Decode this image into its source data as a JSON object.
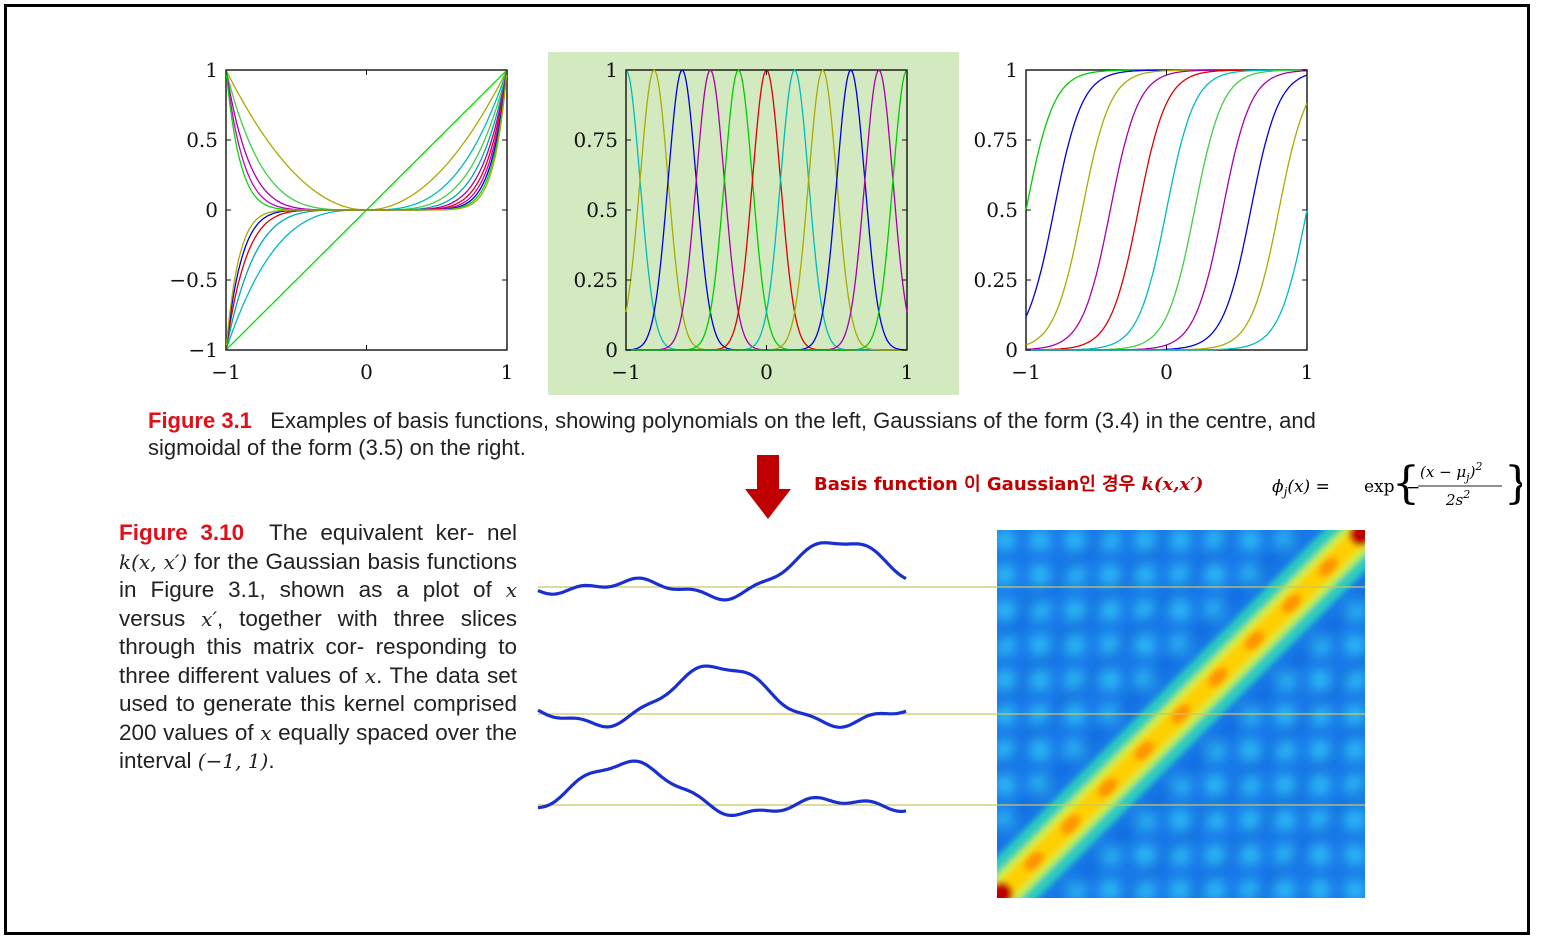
{
  "top_figures": {
    "polynomial": {
      "y_ticks": [
        "1",
        "0.5",
        "0",
        "−0.5",
        "−1"
      ],
      "x_ticks": [
        "−1",
        "0",
        "1"
      ],
      "colors": [
        "#00dd00",
        "#aaaa00",
        "#00bbbb",
        "#44cc44",
        "#00aaaa",
        "#aa00aa",
        "#dd0000",
        "#cc00cc",
        "#0000dd"
      ]
    },
    "gaussian": {
      "y_ticks": [
        "1",
        "0.75",
        "0.5",
        "0.25",
        "0"
      ],
      "x_ticks": [
        "−1",
        "0",
        "1"
      ],
      "highlight_color": "#d3eac0",
      "colors": [
        "#00bbbb",
        "#aaaa00",
        "#0000dd",
        "#aa00aa",
        "#00cc00",
        "#dd0000",
        "#00bbbb",
        "#aaaa00",
        "#0000dd",
        "#aa00aa",
        "#00cc00"
      ]
    },
    "sigmoid": {
      "y_ticks": [
        "1",
        "0.75",
        "0.5",
        "0.25",
        "0"
      ],
      "x_ticks": [
        "−1",
        "0",
        "1"
      ],
      "colors": [
        "#00cc00",
        "#0000dd",
        "#aaaa00",
        "#aa00aa",
        "#dd0000",
        "#00bbbb",
        "#44cc44",
        "#aa00aa",
        "#0000dd",
        "#aaaa00",
        "#00bbbb"
      ]
    }
  },
  "caption_31": {
    "label": "Figure 3.1",
    "text": "Examples of basis functions, showing polynomials on the left, Gaussians of the form (3.4) in the centre, and sigmoidal of the form (3.5) on the right."
  },
  "annotation": {
    "text": "Basis function 이 Gaussian인 경우 ",
    "kernel": "k(x,x′)",
    "arrow_color": "#c00000"
  },
  "caption_310": {
    "label": "Figure 3.10",
    "t1": "The equivalent ker- nel ",
    "m1": "k(x, x′)",
    "t2": " for the Gaussian basis functions in Figure 3.1, shown as a plot of ",
    "m2": "x",
    "t3": " versus ",
    "m3": "x′",
    "t4": ", together with three slices through this matrix cor- responding to three different values of ",
    "m4": "x",
    "t5": ". The data set used to generate this kernel comprised 200 values of ",
    "m5": "x",
    "t6": " equally spaced over the interval ",
    "m6": "(−1, 1)",
    "t7": "."
  },
  "slices": {
    "line_color": "#c8c860",
    "curve_color": "#1a2fd0"
  }
}
